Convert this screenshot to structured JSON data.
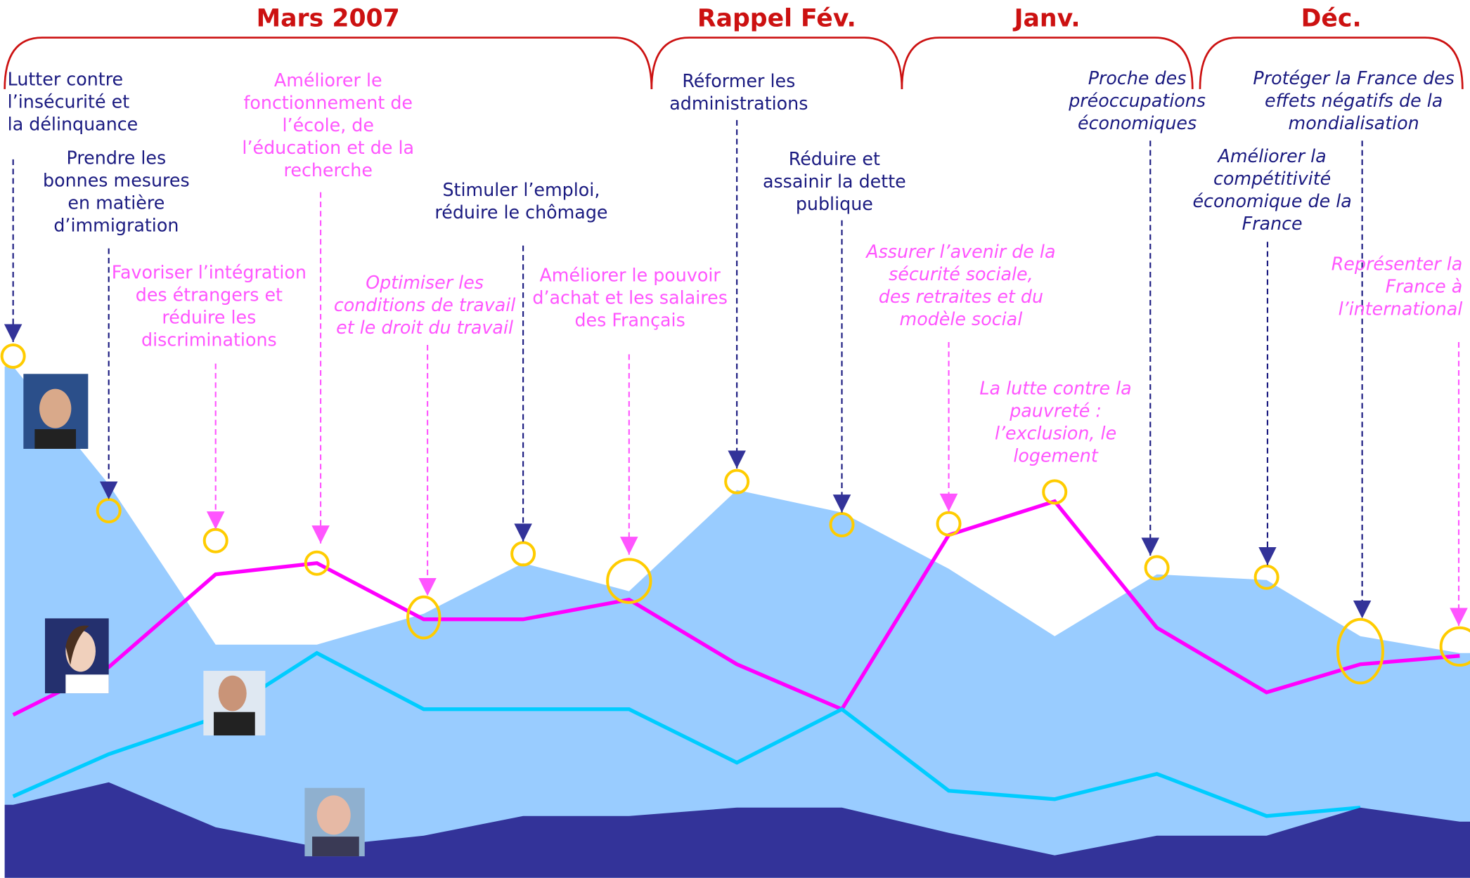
{
  "chart_data": {
    "type": "area",
    "periods": [
      "Mars 2007",
      "Rappel Fév.",
      "Janv.",
      "Déc."
    ],
    "categories": [
      [
        "Lutter contre",
        "l’insécurité et",
        "la délinquance"
      ],
      [
        "Prendre les",
        "bonnes mesures",
        "en matière",
        "d’immigration"
      ],
      [
        "Favoriser l’intégration",
        "des étrangers et",
        "réduire les",
        "discriminations"
      ],
      [
        "Améliorer le",
        "fonctionnement de",
        "l’école, de",
        "l’éducation et de la",
        "recherche"
      ],
      [
        "Optimiser les",
        "conditions de travail",
        "et le droit du travail"
      ],
      [
        "Stimuler l’emploi,",
        "réduire le chômage"
      ],
      [
        "Améliorer le pouvoir",
        "d’achat et les salaires",
        "des Français"
      ],
      [
        "Réformer les",
        "administrations"
      ],
      [
        "Réduire et",
        "assainir la dette",
        "publique"
      ],
      [
        "Assurer l’avenir de la",
        "sécurité sociale,",
        "des retraites et du",
        "modèle social"
      ],
      [
        "La lutte contre la",
        "pauvreté :",
        "l’exclusion, le",
        "logement"
      ],
      [
        "Proche des",
        "préoccupations",
        "économiques"
      ],
      [
        "Améliorer la",
        "compétitivité",
        "économique de la",
        "France"
      ],
      [
        "Protéger la France des",
        "effets négatifs de la",
        "mondialisation"
      ],
      [
        "Représenter la",
        "France à",
        "l’international"
      ]
    ],
    "label_colors": [
      "#1a1a80",
      "#1a1a80",
      "#ff55ff",
      "#ff55ff",
      "#ff55ff",
      "#1a1a80",
      "#ff55ff",
      "#1a1a80",
      "#1a1a80",
      "#ff55ff",
      "#ff55ff",
      "#1a1a80",
      "#1a1a80",
      "#1a1a80",
      "#ff55ff"
    ],
    "label_styles": [
      "normal",
      "normal",
      "normal",
      "normal",
      "italic",
      "normal",
      "normal",
      "normal",
      "normal",
      "italic",
      "italic",
      "italic",
      "italic",
      "italic",
      "italic"
    ],
    "ylim": [
      0,
      100
    ],
    "series": [
      {
        "style": "area",
        "color": "#99ccff",
        "values": [
          91,
          70,
          41.5,
          41.5,
          47,
          56,
          51,
          69,
          65,
          55,
          43,
          54,
          53,
          43,
          40
        ]
      },
      {
        "style": "line",
        "color": "#ff00ff",
        "values": [
          29,
          37.5,
          54,
          56,
          46,
          46,
          49.5,
          38,
          30,
          61,
          67,
          44.5,
          33,
          38,
          39.5
        ]
      },
      {
        "style": "line",
        "color": "#00ccff",
        "values": [
          14.5,
          22,
          28.5,
          40,
          30,
          30,
          30,
          20.5,
          30,
          15.5,
          14,
          18.5,
          11,
          12.5,
          null
        ]
      },
      {
        "style": "area",
        "color": "#333399",
        "values": [
          13,
          17,
          9,
          5.5,
          7.5,
          11,
          11,
          12.5,
          12.5,
          8,
          4,
          7.5,
          7.5,
          12.5,
          10
        ]
      }
    ]
  }
}
